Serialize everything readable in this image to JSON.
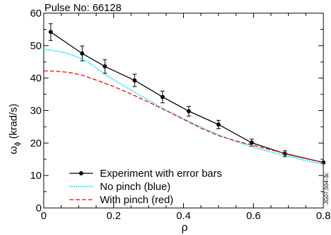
{
  "chart_data": {
    "type": "line",
    "title": "Pulse No: 66128",
    "xlabel": "ρ",
    "ylabel_main": "ω",
    "ylabel_sub": "ϕ",
    "ylabel_unit": " (krad/s)",
    "side_label": "JG07.504-3c",
    "xlim": [
      0,
      0.8
    ],
    "ylim": [
      0,
      60
    ],
    "xticks": [
      0,
      0.2,
      0.4,
      0.6,
      0.8
    ],
    "xtick_labels": [
      "0",
      "0.2",
      "0.4",
      "0.6",
      "0.8"
    ],
    "yticks": [
      0,
      10,
      20,
      30,
      40,
      50,
      60
    ],
    "ytick_labels": [
      "0",
      "10",
      "20",
      "30",
      "40",
      "50",
      "60"
    ],
    "grid": false,
    "legend_position": "bottom-left",
    "series": [
      {
        "name": "Experiment with error bars",
        "color": "#000000",
        "style": "solid-markers",
        "x": [
          0.02,
          0.11,
          0.175,
          0.26,
          0.34,
          0.415,
          0.5,
          0.595,
          0.69,
          0.8
        ],
        "y": [
          54.2,
          47.6,
          43.6,
          39.3,
          34.2,
          29.8,
          25.7,
          20.1,
          16.7,
          14.0
        ],
        "err": [
          2.6,
          2.3,
          2.1,
          1.9,
          1.8,
          1.5,
          1.3,
          1.1,
          0.9,
          0
        ]
      },
      {
        "name": "No pinch (blue)",
        "color": "#00e5ff",
        "style": "dotted",
        "x": [
          0,
          0.02,
          0.05,
          0.08,
          0.11,
          0.14,
          0.17,
          0.2,
          0.25,
          0.3,
          0.35,
          0.4,
          0.45,
          0.5,
          0.55,
          0.6,
          0.65,
          0.7,
          0.75,
          0.8
        ],
        "y": [
          48.8,
          48.6,
          48.1,
          47.2,
          45.9,
          44.0,
          41.5,
          39.5,
          36.3,
          33.2,
          30.1,
          27.4,
          24.9,
          22.5,
          20.5,
          18.7,
          17.2,
          15.9,
          14.6,
          13.4
        ]
      },
      {
        "name": "With pinch (red)",
        "color": "#ff0000",
        "style": "dashed",
        "x": [
          0,
          0.02,
          0.05,
          0.08,
          0.11,
          0.14,
          0.17,
          0.2,
          0.25,
          0.3,
          0.35,
          0.4,
          0.45,
          0.5,
          0.55,
          0.6,
          0.65,
          0.7,
          0.75,
          0.8
        ],
        "y": [
          42.2,
          42.2,
          42.0,
          41.6,
          40.9,
          39.8,
          38.6,
          37.4,
          35.1,
          32.6,
          30.0,
          27.3,
          24.6,
          22.3,
          20.6,
          19.3,
          17.9,
          16.6,
          15.3,
          14.0
        ]
      }
    ]
  }
}
